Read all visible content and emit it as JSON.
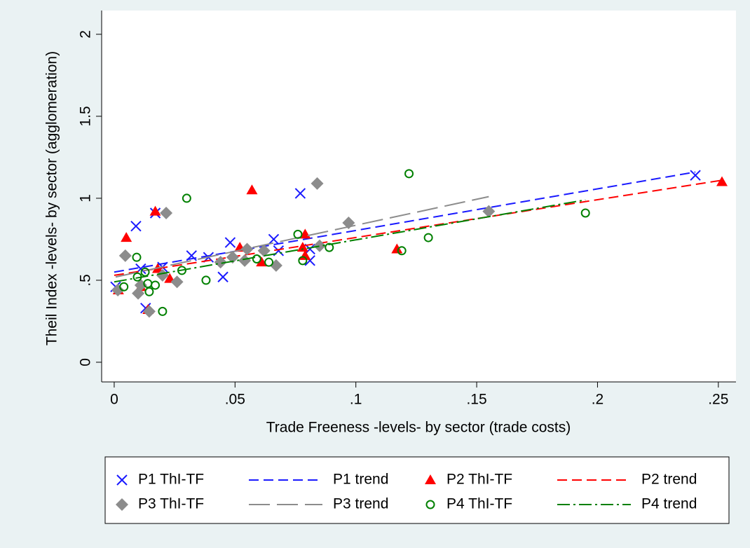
{
  "chart_data": {
    "type": "scatter",
    "x_label": "Trade Freeness -levels- by sector (trade costs)",
    "y_label": "Theil Index -levels- by sector (agglomeration)",
    "xlim": [
      -0.0052,
      0.2573
    ],
    "ylim": [
      -0.12,
      2.145
    ],
    "xticks": [
      0,
      {
        "value": 0.05,
        "label": ".05"
      },
      {
        "value": 0.1,
        "label": ".1"
      },
      {
        "value": 0.15,
        "label": ".15"
      },
      {
        "value": 0.2,
        "label": ".2"
      },
      {
        "value": 0.25,
        "label": ".25"
      }
    ],
    "yticks": [
      0,
      {
        "value": 0.5,
        "label": ".5"
      },
      1,
      {
        "value": 1.5,
        "label": "1.5"
      },
      2
    ],
    "grid": false,
    "legend": "bottom",
    "series": [
      {
        "name": "P1 ThI-TF",
        "color": "#1a1aff",
        "marker": "x",
        "x": [
          0.0006,
          0.009,
          0.011,
          0.013,
          0.017,
          0.02,
          0.032,
          0.039,
          0.045,
          0.048,
          0.066,
          0.068,
          0.077,
          0.081,
          0.081,
          0.2405
        ],
        "values": [
          0.46,
          0.83,
          0.57,
          0.33,
          0.91,
          0.58,
          0.65,
          0.64,
          0.52,
          0.73,
          0.75,
          0.68,
          1.03,
          0.69,
          0.62,
          1.14
        ]
      },
      {
        "name": "P1 trend",
        "color": "#1a1aff",
        "dash": "short",
        "x": [
          0,
          0.2405
        ],
        "values": [
          0.55,
          1.16
        ]
      },
      {
        "name": "P2 ThI-TF",
        "color": "#ff0000",
        "marker": "triangle",
        "x": [
          0.0017,
          0.005,
          0.017,
          0.018,
          0.014,
          0.011,
          0.023,
          0.052,
          0.057,
          0.061,
          0.078,
          0.079,
          0.079,
          0.117,
          0.2515
        ],
        "values": [
          0.44,
          0.76,
          0.92,
          0.57,
          0.32,
          0.46,
          0.51,
          0.7,
          1.05,
          0.61,
          0.7,
          0.65,
          0.78,
          0.69,
          1.1
        ]
      },
      {
        "name": "P2 trend",
        "color": "#ff0000",
        "dash": "short",
        "x": [
          0,
          0.2515
        ],
        "values": [
          0.53,
          1.11
        ]
      },
      {
        "name": "P3 ThI-TF",
        "color": "#8c8c8c",
        "marker": "diamond",
        "x": [
          0.0015,
          0.0046,
          0.0099,
          0.011,
          0.0145,
          0.0215,
          0.02,
          0.026,
          0.044,
          0.049,
          0.054,
          0.055,
          0.062,
          0.067,
          0.084,
          0.085,
          0.097,
          0.155
        ],
        "values": [
          0.44,
          0.65,
          0.42,
          0.47,
          0.31,
          0.91,
          0.53,
          0.49,
          0.61,
          0.64,
          0.62,
          0.69,
          0.68,
          0.59,
          1.09,
          0.71,
          0.85,
          0.92
        ]
      },
      {
        "name": "P3 trend",
        "color": "#8c8c8c",
        "dash": "long",
        "x": [
          0.0006,
          0.155
        ],
        "values": [
          0.52,
          1.01
        ]
      },
      {
        "name": "P4 ThI-TF",
        "color": "#008000",
        "marker": "circle",
        "x": [
          0.004,
          0.0093,
          0.0096,
          0.0128,
          0.0139,
          0.0145,
          0.017,
          0.02,
          0.028,
          0.03,
          0.038,
          0.059,
          0.064,
          0.076,
          0.078,
          0.089,
          0.119,
          0.122,
          0.13,
          0.195
        ],
        "values": [
          0.46,
          0.64,
          0.52,
          0.55,
          0.48,
          0.43,
          0.47,
          0.31,
          0.56,
          1.0,
          0.5,
          0.63,
          0.61,
          0.78,
          0.62,
          0.7,
          0.68,
          1.15,
          0.76,
          0.91
        ]
      },
      {
        "name": "P4 trend",
        "color": "#008000",
        "dash": "dash-dot",
        "x": [
          0,
          0.195
        ],
        "values": [
          0.49,
          0.99
        ]
      }
    ]
  }
}
